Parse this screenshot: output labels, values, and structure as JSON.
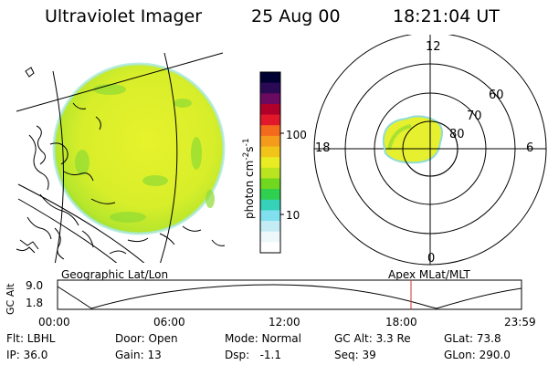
{
  "header": {
    "title": "Ultraviolet Imager",
    "date": "25 Aug 00",
    "time": "18:21:04 UT"
  },
  "colorbar": {
    "unit_main": "photon cm",
    "unit_exp1": "-2",
    "unit_s": "s",
    "unit_exp2": "-1",
    "tick_high": "100",
    "tick_low": "10",
    "colors": [
      "#000033",
      "#2a0a55",
      "#6a0a60",
      "#b0002a",
      "#e0182a",
      "#f36a1c",
      "#f59b1c",
      "#f2c41a",
      "#e9ec22",
      "#b9e41f",
      "#6fd81f",
      "#2fcf4f",
      "#35d1b9",
      "#80e0ee",
      "#c4ecf4",
      "#eef8fa",
      "#ffffff"
    ]
  },
  "polar": {
    "mlt_labels": [
      "12",
      "6",
      "0",
      "18"
    ],
    "lat_labels": [
      "60",
      "70",
      "80"
    ]
  },
  "altitude_plot": {
    "left_label": "Geographic Lat/Lon",
    "right_label": "Apex MLat/MLT",
    "ylabel": "GC Alt",
    "y_ticks": [
      "9.0",
      "1.8"
    ],
    "x_ticks": [
      "00:00",
      "06:00",
      "12:00",
      "18:00",
      "23:59"
    ]
  },
  "footer": {
    "row1": [
      {
        "label": "Flt: LBHL"
      },
      {
        "label": "Door: Open"
      },
      {
        "label": "Mode: Normal"
      },
      {
        "label": "GC Alt: 3.3 Re"
      },
      {
        "label": "GLat: 73.8"
      }
    ],
    "row2": [
      {
        "label": "IP: 36.0"
      },
      {
        "label": "Gain: 13"
      },
      {
        "label": "Dsp:   -1.1"
      },
      {
        "label": "Seq: 39"
      },
      {
        "label": "GLon: 290.0"
      }
    ]
  },
  "colors": {
    "disk_fill": "#dff02a",
    "disk_green": "#7fdc30",
    "disk_edge": "#9fe6d8",
    "oval_fill": "#e8f030",
    "marker": "#d03030"
  }
}
